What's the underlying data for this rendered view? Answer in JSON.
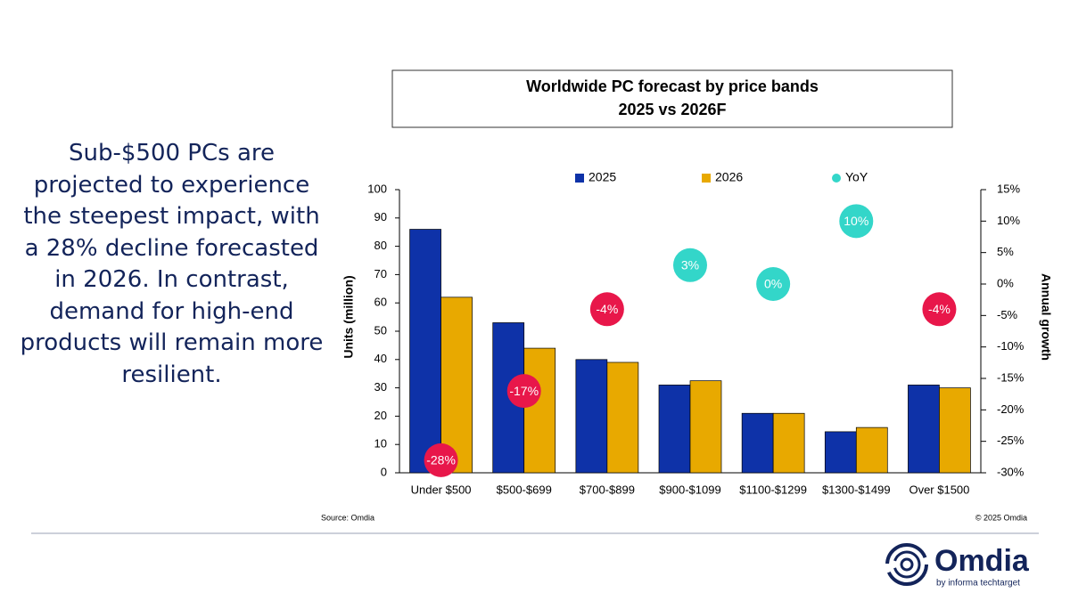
{
  "slide": {
    "body": "Sub-$500 PCs are projected to experience the steepest impact, with a 28% decline forecasted in 2026. In contrast, demand for high-end products will remain more resilient.",
    "source": "Source: Omdia",
    "copyright": "© 2025 Omdia",
    "logo": "Omdia",
    "logo_tagline": "by informa techtarget"
  },
  "chart_data": {
    "type": "bar",
    "title": "Worldwide PC forecast by price bands",
    "subtitle": "2025 vs 2026F",
    "y_label": "Units (million)",
    "y2_label": "Annual growth",
    "categories": [
      "Under $500",
      "$500-$699",
      "$700-$899",
      "$900-$1099",
      "$1100-$1299",
      "$1300-$1499",
      "Over $1500"
    ],
    "series": [
      {
        "name": "2025",
        "color": "#0e32a8",
        "values": [
          86,
          53,
          40,
          31,
          21,
          14.5,
          31
        ]
      },
      {
        "name": "2026",
        "color": "#e8a900",
        "values": [
          62,
          44,
          39,
          32.5,
          21,
          16,
          30
        ]
      },
      {
        "name": "YoY",
        "color": "#33d6c9",
        "negative_color": "#e8174a",
        "axis": "y2",
        "values": [
          -28,
          -17,
          -4,
          3,
          0,
          10,
          -4
        ],
        "value_labels": [
          "-28%",
          "-17%",
          "-4%",
          "3%",
          "0%",
          "10%",
          "-4%"
        ]
      }
    ],
    "ylim": [
      0,
      100
    ],
    "yticks": [
      0,
      10,
      20,
      30,
      40,
      50,
      60,
      70,
      80,
      90,
      100
    ],
    "y2lim": [
      -30,
      15
    ],
    "y2ticks": [
      {
        "value": -30,
        "label": "-30%"
      },
      {
        "value": -25,
        "label": "-25%"
      },
      {
        "value": -20,
        "label": "-20%"
      },
      {
        "value": -15,
        "label": "-15%"
      },
      {
        "value": -10,
        "label": "-10%"
      },
      {
        "value": -5,
        "label": "-5%"
      },
      {
        "value": 0,
        "label": "0%"
      },
      {
        "value": 5,
        "label": "5%"
      },
      {
        "value": 10,
        "label": "10%"
      },
      {
        "value": 15,
        "label": "15%"
      }
    ],
    "grid": false,
    "legend": "top"
  }
}
